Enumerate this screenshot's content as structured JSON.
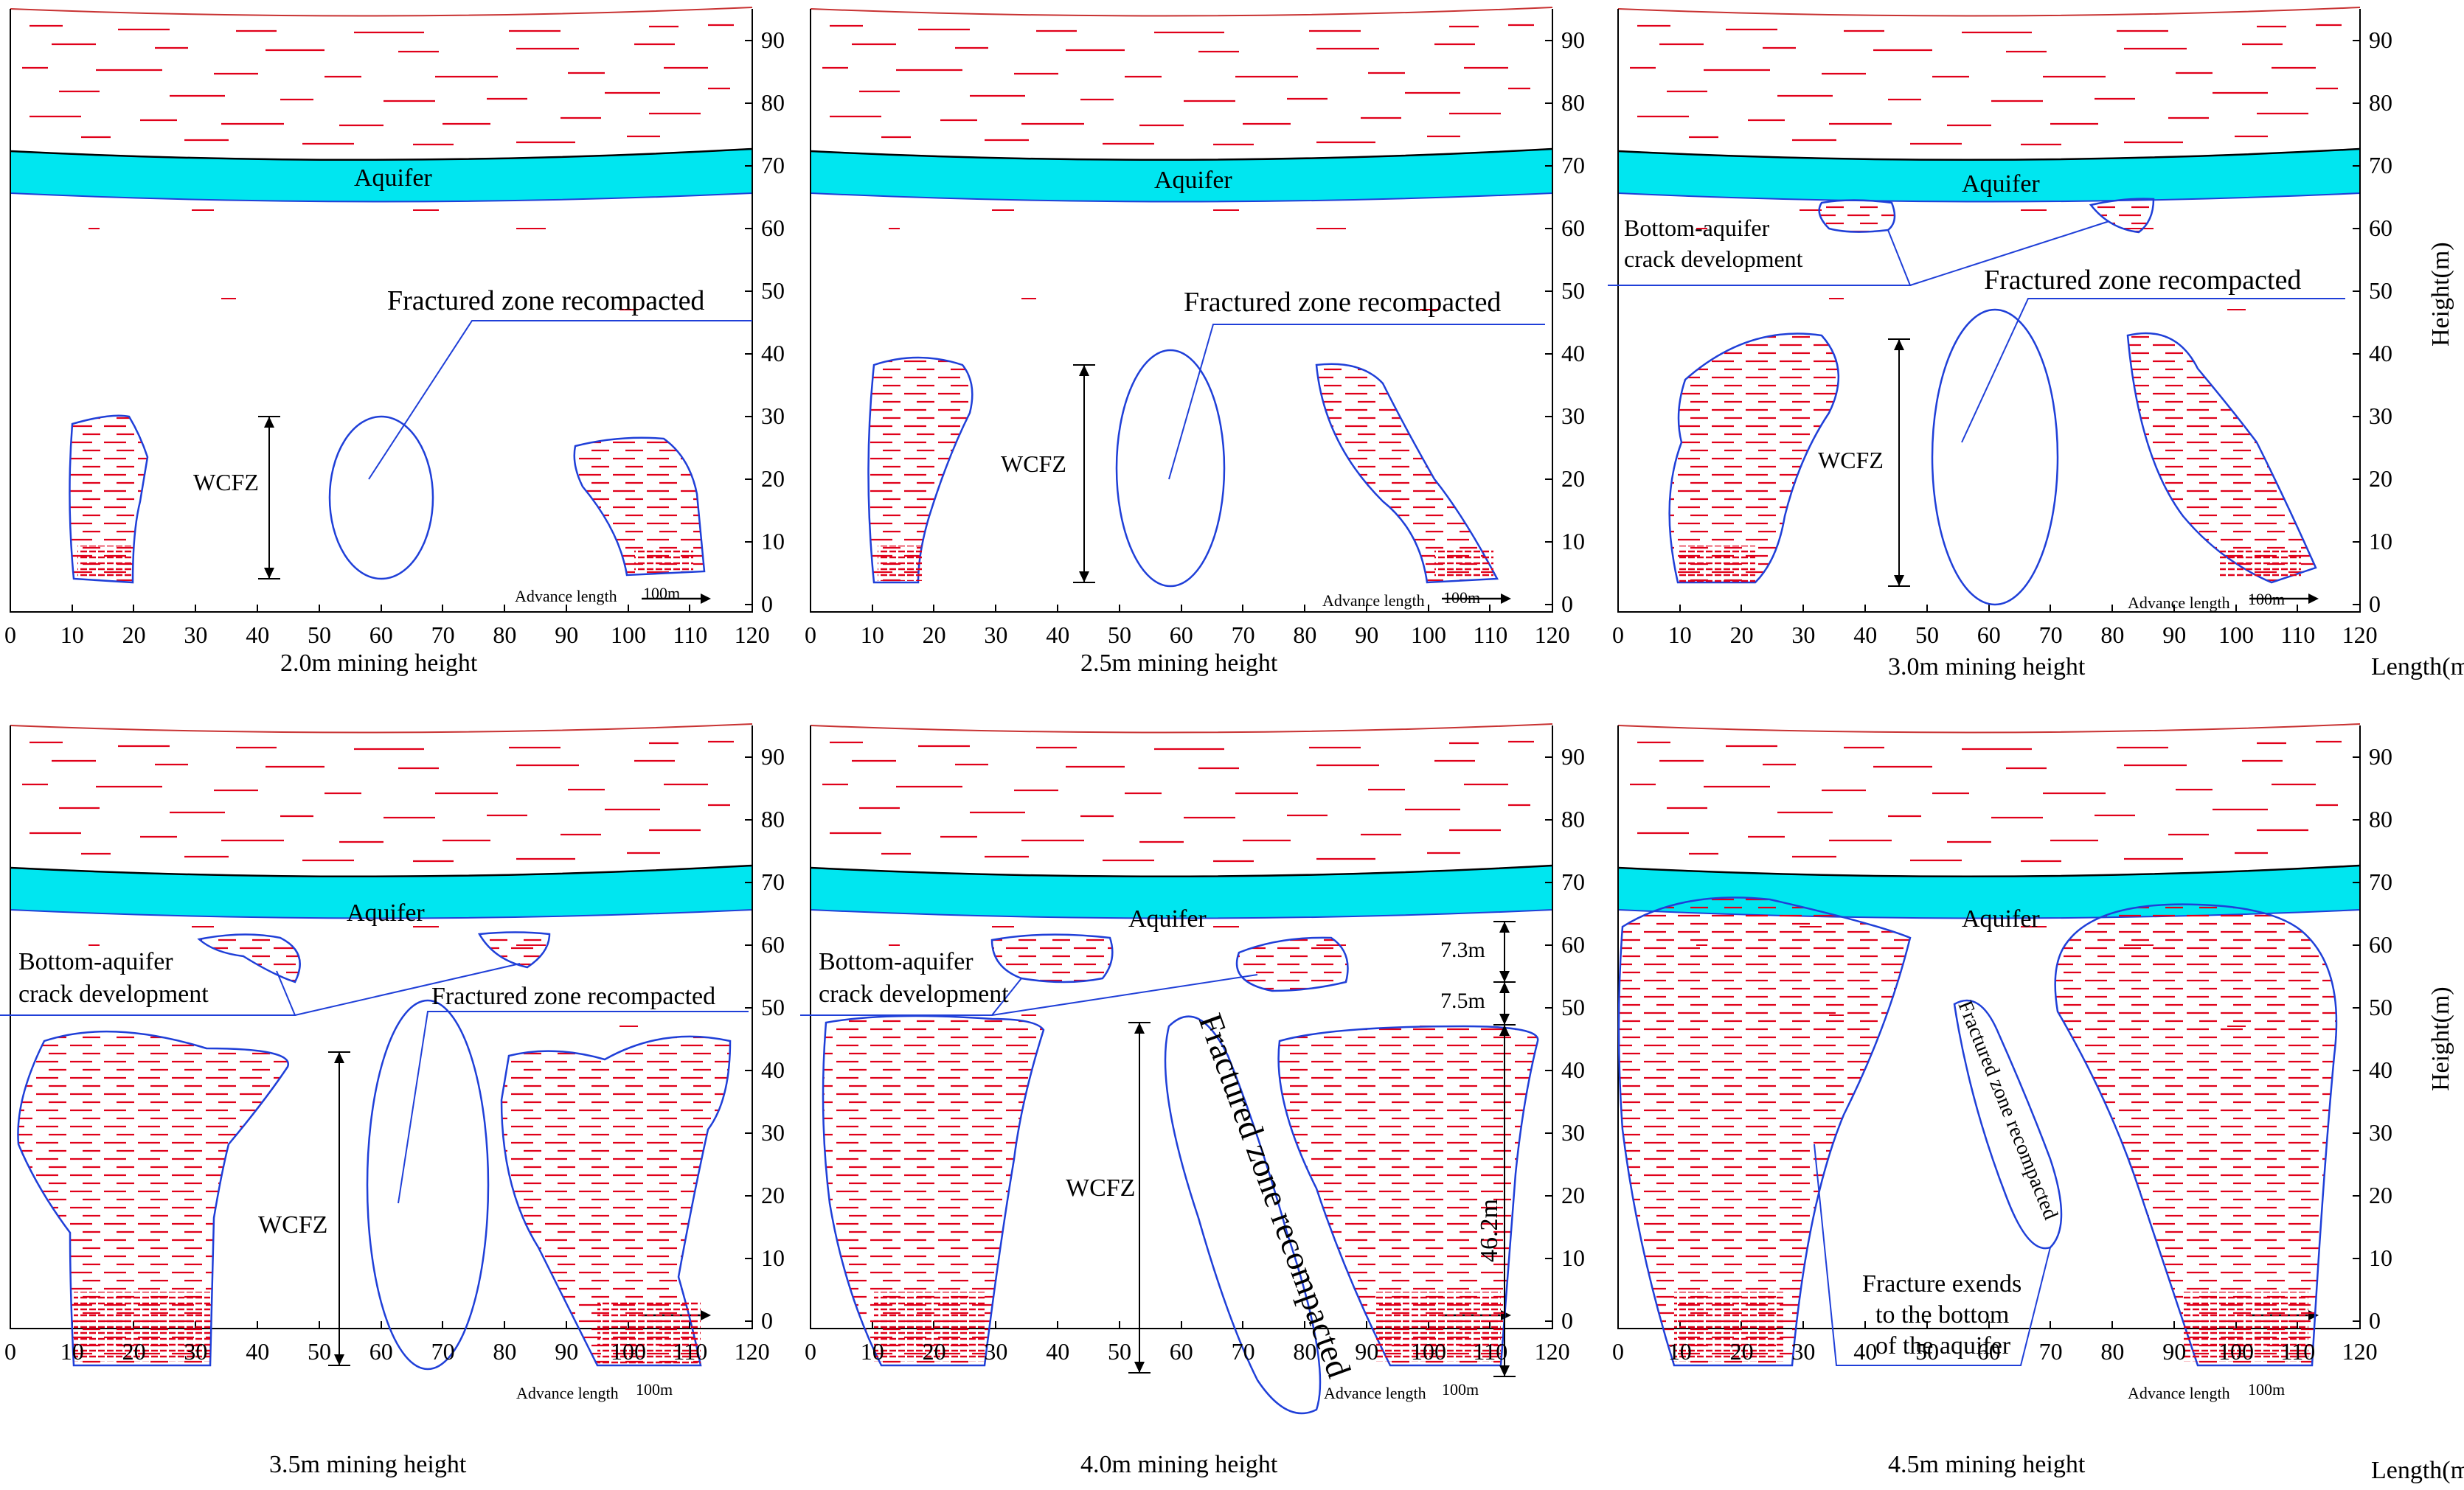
{
  "figure_type": "numerical simulation fracture diagrams",
  "colors": {
    "aquifer": "#00e6f0",
    "outline": "#1f3fd8",
    "fracture": "#e0001a",
    "axis": "#000000"
  },
  "axes": {
    "x_ticks": [
      "0",
      "10",
      "20",
      "30",
      "40",
      "50",
      "60",
      "70",
      "80",
      "90",
      "100",
      "110",
      "120"
    ],
    "y_ticks": [
      "0",
      "10",
      "20",
      "30",
      "40",
      "50",
      "60",
      "70",
      "80",
      "90"
    ],
    "x_unit_label": "Length(m)",
    "y_unit_label": "Height(m)"
  },
  "common": {
    "aquifer_label": "Aquifer",
    "advance_label": "Advance length",
    "advance_value": "100m"
  },
  "panels": [
    {
      "id": "p1",
      "caption": "2.0m mining height",
      "mining_height_m": 2.0,
      "annotations": {
        "wcfz": "WCFZ",
        "recompacted": "Fractured zone recompacted"
      }
    },
    {
      "id": "p2",
      "caption": "2.5m mining height",
      "mining_height_m": 2.5,
      "annotations": {
        "recompacted": "Fractured zone recompacted",
        "wcfz": "WCFZ"
      }
    },
    {
      "id": "p3",
      "caption": "3.0m mining height",
      "mining_height_m": 3.0,
      "annotations": {
        "bottom_crack_1": "Bottom-aquifer",
        "bottom_crack_2": "crack development",
        "recompacted": "Fractured zone recompacted",
        "wcfz": "WCFZ"
      }
    },
    {
      "id": "p4",
      "caption": "3.5m mining height",
      "mining_height_m": 3.5,
      "annotations": {
        "bottom_crack_1": "Bottom-aquifer",
        "bottom_crack_2": "crack development",
        "recompacted": "Fractured zone recompacted",
        "wcfz": "WCFZ"
      }
    },
    {
      "id": "p5",
      "caption": "4.0m mining height",
      "mining_height_m": 4.0,
      "annotations": {
        "bottom_crack_1": "Bottom-aquifer",
        "bottom_crack_2": "crack development",
        "recompacted": "Fractured zone recompacted",
        "wcfz": "WCFZ",
        "dim_top": "7.3m",
        "dim_mid": "7.5m",
        "dim_main": "46.2m"
      }
    },
    {
      "id": "p6",
      "caption": "4.5m mining height",
      "mining_height_m": 4.5,
      "annotations": {
        "recompacted": "Fractured zone recompacted",
        "fracture_1": "Fracture exends",
        "fracture_2": "to the bottom",
        "fracture_3": "of the aquifer"
      }
    }
  ]
}
